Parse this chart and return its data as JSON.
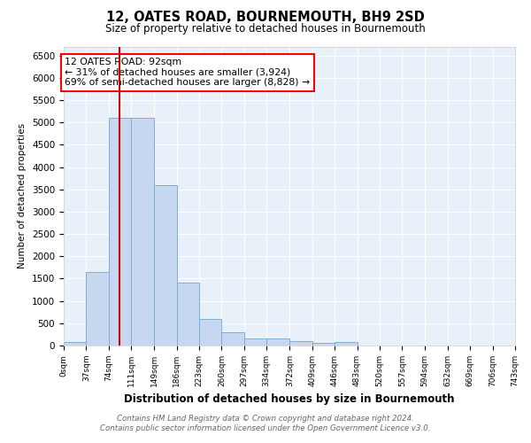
{
  "title": "12, OATES ROAD, BOURNEMOUTH, BH9 2SD",
  "subtitle": "Size of property relative to detached houses in Bournemouth",
  "xlabel": "Distribution of detached houses by size in Bournemouth",
  "ylabel": "Number of detached properties",
  "bin_edges": [
    0,
    37,
    74,
    111,
    149,
    186,
    223,
    260,
    297,
    334,
    372,
    409,
    446,
    483,
    520,
    557,
    594,
    632,
    669,
    706,
    743
  ],
  "bin_labels": [
    "0sqm",
    "37sqm",
    "74sqm",
    "111sqm",
    "149sqm",
    "186sqm",
    "223sqm",
    "260sqm",
    "297sqm",
    "334sqm",
    "372sqm",
    "409sqm",
    "446sqm",
    "483sqm",
    "520sqm",
    "557sqm",
    "594sqm",
    "632sqm",
    "669sqm",
    "706sqm",
    "743sqm"
  ],
  "bar_heights": [
    75,
    1650,
    5100,
    5100,
    3600,
    1400,
    600,
    300,
    160,
    150,
    100,
    50,
    75,
    0,
    0,
    0,
    0,
    0,
    0,
    0
  ],
  "bar_color": "#c5d8f0",
  "bar_edge_color": "#7dafd8",
  "property_size": 92,
  "red_line_color": "#cc0000",
  "ylim": [
    0,
    6700
  ],
  "yticks": [
    0,
    500,
    1000,
    1500,
    2000,
    2500,
    3000,
    3500,
    4000,
    4500,
    5000,
    5500,
    6000,
    6500
  ],
  "annotation_text": "12 OATES ROAD: 92sqm\n← 31% of detached houses are smaller (3,924)\n69% of semi-detached houses are larger (8,828) →",
  "footnote1": "Contains HM Land Registry data © Crown copyright and database right 2024.",
  "footnote2": "Contains public sector information licensed under the Open Government Licence v3.0.",
  "background_color": "#ffffff",
  "plot_bg_color": "#e8f0fa"
}
